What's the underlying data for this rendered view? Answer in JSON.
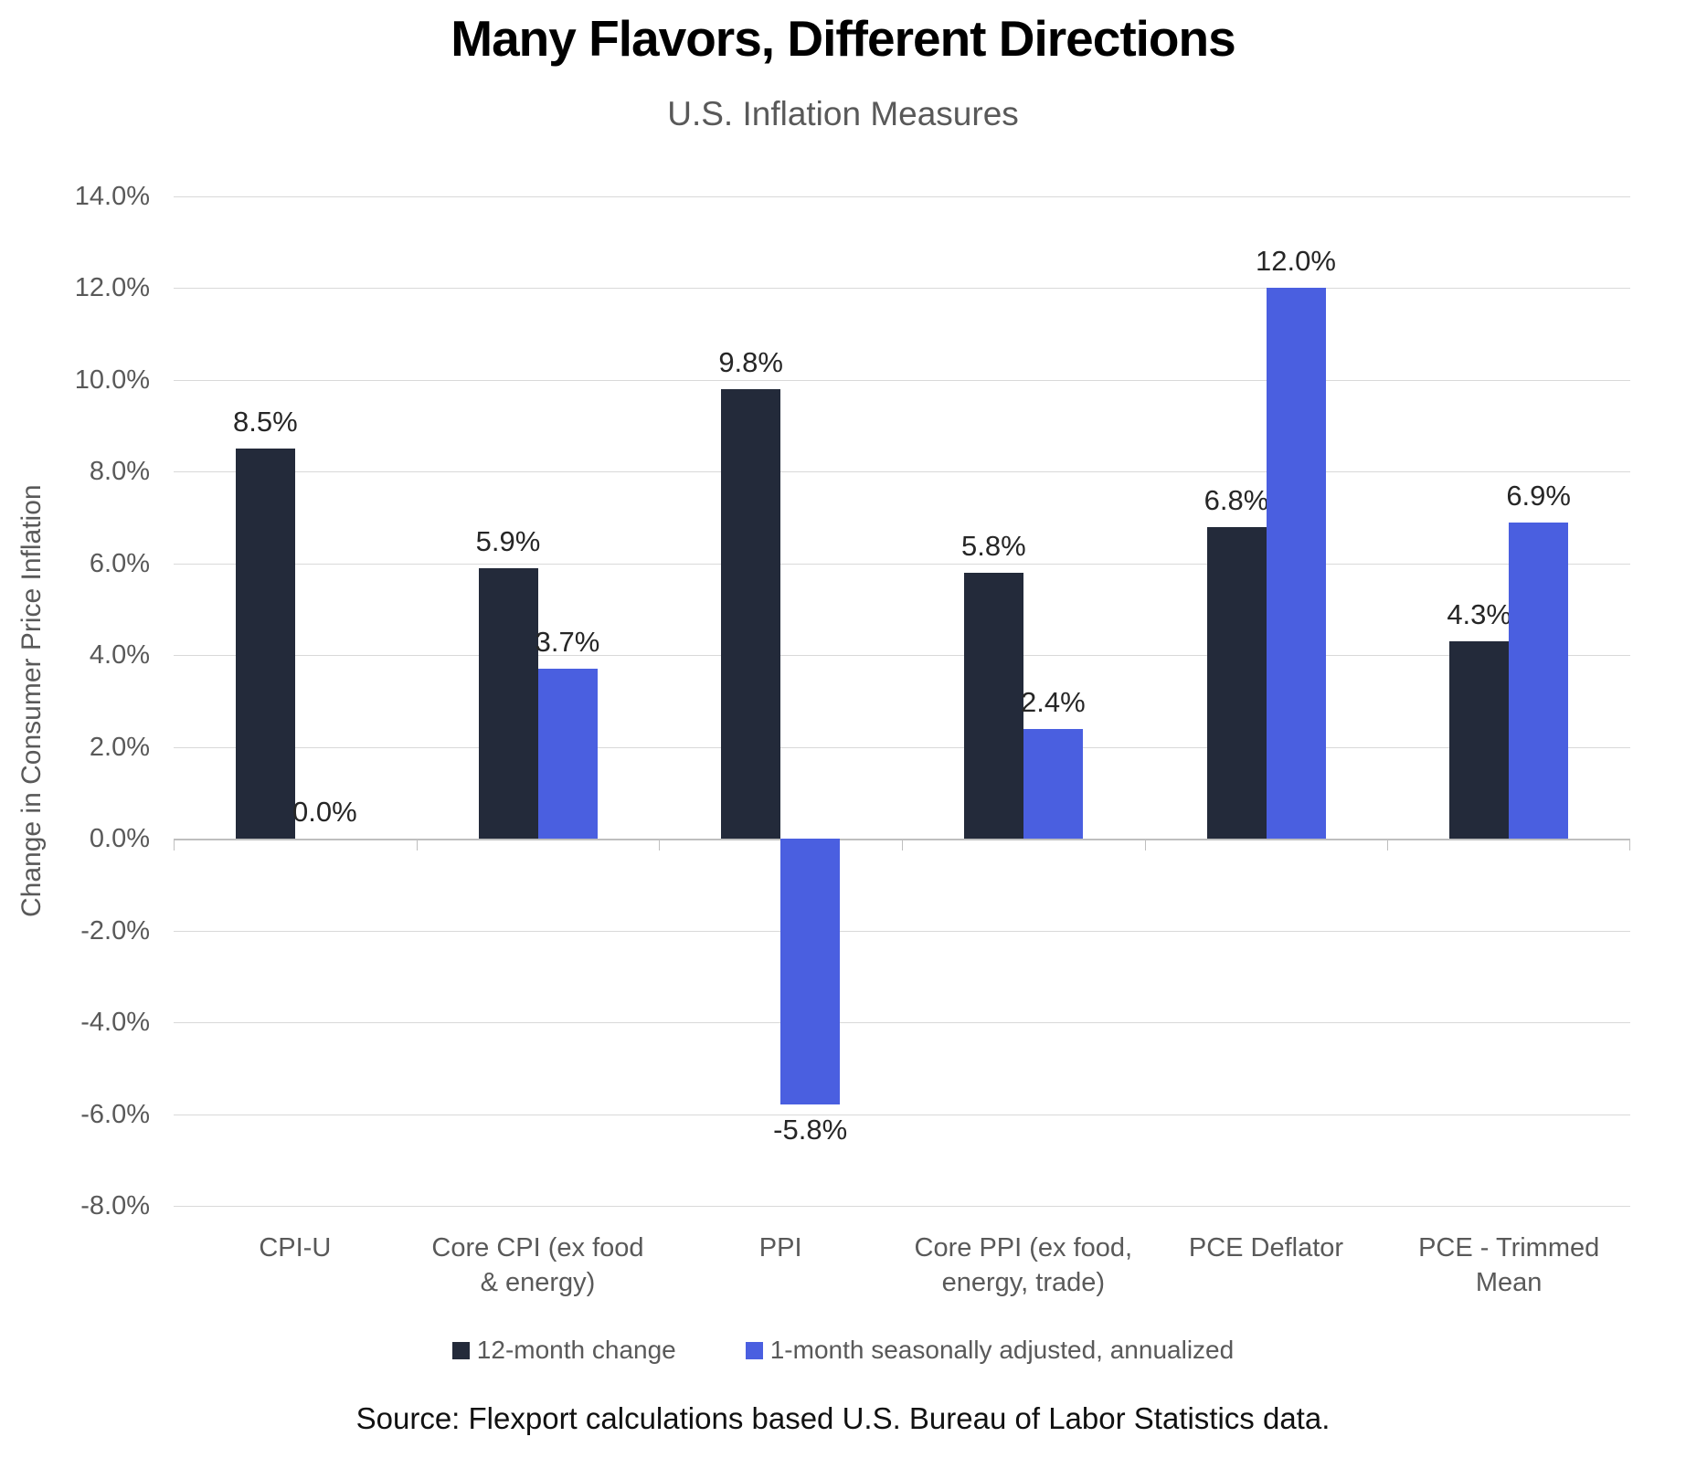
{
  "chart": {
    "title": "Many Flavors, Different Directions",
    "subtitle": "U.S. Inflation Measures",
    "ylabel": "Change in Consumer Price Inflation",
    "source": "Source: Flexport calculations based U.S. Bureau of Labor Statistics data.",
    "colors": {
      "title_text": "#000000",
      "subtitle_text": "#595959",
      "axis_text": "#595959",
      "value_label_text": "#262626",
      "gridline": "#d9d9d9",
      "axis_line": "#bfbfbf"
    }
  },
  "chart_data": {
    "type": "bar",
    "title": "Many Flavors, Different Directions",
    "subtitle": "U.S. Inflation Measures",
    "xlabel": "",
    "ylabel": "Change in Consumer Price Inflation",
    "ylim": [
      -8,
      14
    ],
    "ytick_step": 2,
    "ytick_labels": [
      "14.0%",
      "12.0%",
      "10.0%",
      "8.0%",
      "6.0%",
      "4.0%",
      "2.0%",
      "0.0%",
      "-2.0%",
      "-4.0%",
      "-6.0%",
      "-8.0%"
    ],
    "grid": true,
    "legend_position": "bottom",
    "categories": [
      "CPI-U",
      "Core CPI (ex food & energy)",
      "PPI",
      "Core PPI (ex food, energy, trade)",
      "PCE Deflator",
      "PCE - Trimmed Mean"
    ],
    "category_lines": [
      [
        "CPI-U"
      ],
      [
        "Core CPI (ex food",
        "& energy)"
      ],
      [
        "PPI"
      ],
      [
        "Core PPI (ex food,",
        "energy, trade)"
      ],
      [
        "PCE Deflator"
      ],
      [
        "PCE - Trimmed",
        "Mean"
      ]
    ],
    "series": [
      {
        "name": "12-month change",
        "color": "#232a3a",
        "values": [
          8.5,
          5.9,
          9.8,
          5.8,
          6.8,
          4.3
        ],
        "labels": [
          "8.5%",
          "5.9%",
          "9.8%",
          "5.8%",
          "6.8%",
          "4.3%"
        ]
      },
      {
        "name": "1-month seasonally adjusted, annualized",
        "color": "#4a5fe0",
        "values": [
          0.0,
          3.7,
          -5.8,
          2.4,
          12.0,
          6.9
        ],
        "labels": [
          "0.0%",
          "3.7%",
          "-5.8%",
          "2.4%",
          "12.0%",
          "6.9%"
        ]
      }
    ]
  }
}
